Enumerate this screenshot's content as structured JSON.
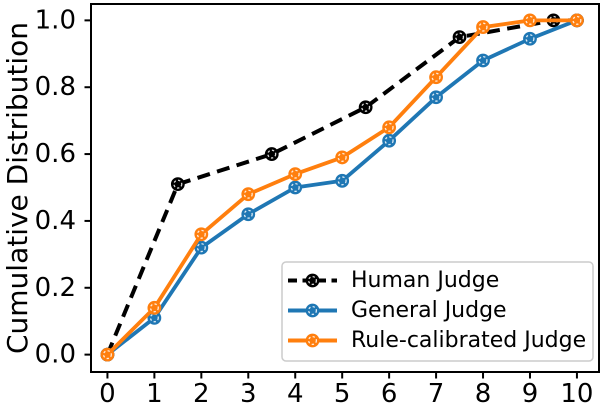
{
  "chart_data": {
    "type": "line",
    "title": "",
    "xlabel": "",
    "ylabel": "Cumulative Distribution",
    "xlim": [
      -0.35,
      10.47
    ],
    "ylim": [
      -0.052,
      1.049
    ],
    "x_ticks": [
      0,
      1,
      2,
      3,
      4,
      5,
      6,
      7,
      8,
      9,
      10
    ],
    "x_tick_labels": [
      "0",
      "1",
      "2",
      "3",
      "4",
      "5",
      "6",
      "7",
      "8",
      "9",
      "10"
    ],
    "y_ticks": [
      0.0,
      0.2,
      0.4,
      0.6,
      0.8,
      1.0
    ],
    "y_tick_labels": [
      "0.0",
      "0.2",
      "0.4",
      "0.6",
      "0.8",
      "1.0"
    ],
    "grid": false,
    "legend": {
      "position": "lower right",
      "border_color": "#cccccc",
      "background": "#ffffff"
    },
    "series": [
      {
        "name": "Human Judge",
        "color": "#000000",
        "linestyle": "dashed",
        "marker": "circle",
        "x": [
          0,
          1.5,
          3.5,
          5.5,
          7.5,
          9.5,
          10
        ],
        "y": [
          0.0,
          0.51,
          0.6,
          0.74,
          0.95,
          1.0,
          1.0
        ]
      },
      {
        "name": "General Judge",
        "color": "#1f77b4",
        "linestyle": "solid",
        "marker": "circle",
        "x": [
          0,
          1,
          2,
          3,
          4,
          5,
          6,
          7,
          8,
          9,
          10
        ],
        "y": [
          0.0,
          0.11,
          0.32,
          0.42,
          0.5,
          0.52,
          0.64,
          0.77,
          0.88,
          0.945,
          1.0
        ]
      },
      {
        "name": "Rule-calibrated Judge",
        "color": "#ff7f0e",
        "linestyle": "solid",
        "marker": "circle",
        "x": [
          0,
          1,
          2,
          3,
          4,
          5,
          6,
          7,
          8,
          9,
          10
        ],
        "y": [
          0.0,
          0.14,
          0.36,
          0.48,
          0.54,
          0.59,
          0.68,
          0.83,
          0.98,
          1.0,
          1.0
        ]
      }
    ]
  }
}
